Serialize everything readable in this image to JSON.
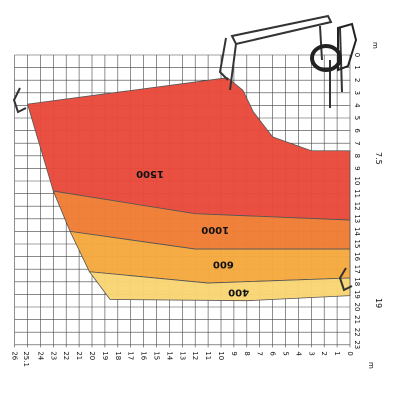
{
  "chart_data": {
    "type": "area",
    "title": "",
    "x_axis": {
      "unit": "m",
      "range": [
        0,
        25.1
      ],
      "ticks": [
        "0",
        "1",
        "2",
        "3",
        "4",
        "5",
        "6",
        "7",
        "8",
        "9",
        "10",
        "11",
        "12",
        "13",
        "14",
        "15",
        "16",
        "17",
        "18",
        "19",
        "20",
        "21",
        "22",
        "23",
        "24",
        "25.1",
        "26"
      ]
    },
    "y_axis": {
      "unit": "m",
      "range": [
        0,
        23
      ],
      "ticks": [
        "0",
        "1",
        "2",
        "3",
        "4",
        "5",
        "6",
        "7",
        "8",
        "9",
        "10",
        "11",
        "12",
        "13",
        "14",
        "15",
        "16",
        "17",
        "18",
        "19",
        "20",
        "21",
        "22",
        "23"
      ],
      "extra_labels": [
        "7.5",
        "19"
      ]
    },
    "zones": [
      {
        "label": "1500",
        "color": "#e84a3c",
        "points": [
          [
            25,
            3.9
          ],
          [
            9.5,
            1.8
          ],
          [
            8.3,
            2.8
          ],
          [
            7.5,
            4.5
          ],
          [
            6,
            6.5
          ],
          [
            3,
            7.6
          ],
          [
            0,
            7.6
          ],
          [
            0,
            13.1
          ],
          [
            12,
            12.6
          ],
          [
            23,
            10.8
          ]
        ]
      },
      {
        "label": "1000",
        "color": "#f07d35",
        "points": [
          [
            23,
            10.8
          ],
          [
            12,
            12.6
          ],
          [
            0,
            13.1
          ],
          [
            0,
            15.4
          ],
          [
            12,
            15.4
          ],
          [
            21.7,
            14
          ]
        ]
      },
      {
        "label": "600",
        "color": "#f5a93f",
        "points": [
          [
            21.7,
            14
          ],
          [
            12,
            15.4
          ],
          [
            0,
            15.4
          ],
          [
            0,
            17.7
          ],
          [
            11,
            18.1
          ],
          [
            20.2,
            17.2
          ]
        ]
      },
      {
        "label": "400",
        "color": "#f9d574",
        "points": [
          [
            20.2,
            17.2
          ],
          [
            11,
            18.1
          ],
          [
            0,
            17.7
          ],
          [
            0,
            19.1
          ],
          [
            8,
            19.5
          ],
          [
            18.6,
            19.4
          ]
        ]
      }
    ],
    "legend": "none",
    "grid": true
  }
}
